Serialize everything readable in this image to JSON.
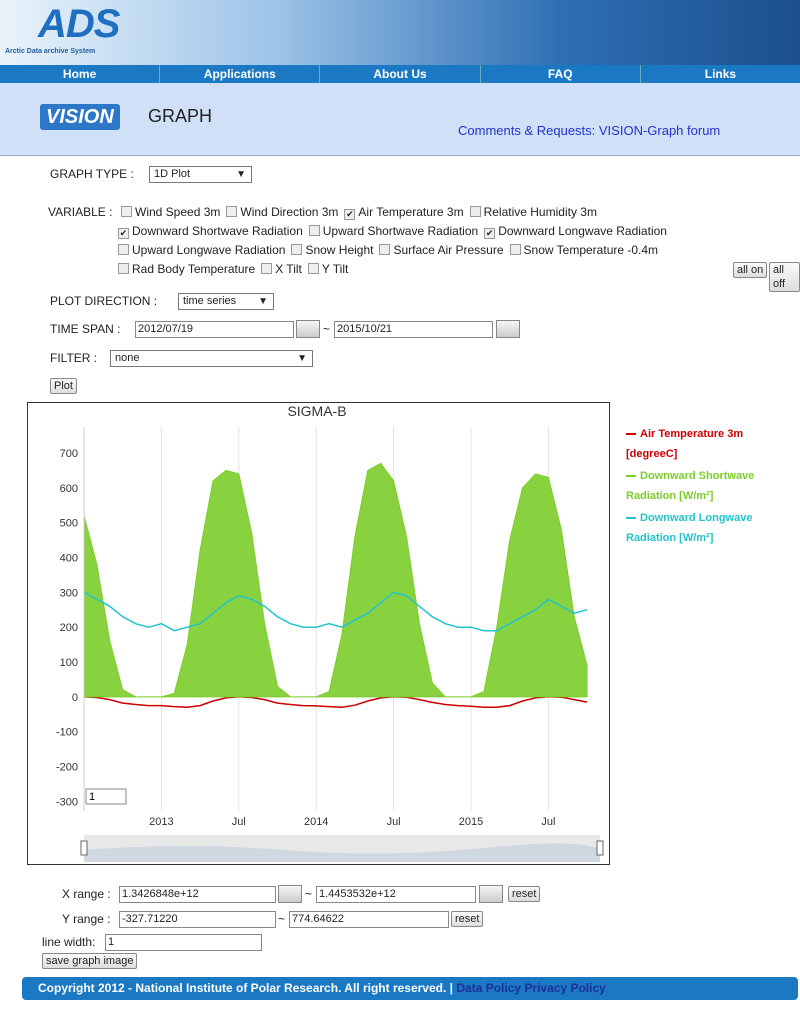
{
  "header": {
    "logo": "ADS",
    "logo_subtitle": "Arctic Data archive System",
    "nav": [
      "Home",
      "Applications",
      "About Us",
      "FAQ",
      "Links"
    ],
    "app_logo": "VISION",
    "app_title": "GRAPH",
    "forum_link": "Comments & Requests: VISION-Graph forum"
  },
  "form": {
    "graph_type_label": "GRAPH TYPE :",
    "graph_type": "1D Plot",
    "variable_label": "VARIABLE :",
    "variables": [
      [
        {
          "label": "Wind Speed 3m",
          "checked": false
        },
        {
          "label": "Wind Direction 3m",
          "checked": false
        },
        {
          "label": "Air Temperature 3m",
          "checked": true
        },
        {
          "label": "Relative Humidity 3m",
          "checked": false
        }
      ],
      [
        {
          "label": "Downward Shortwave Radiation",
          "checked": true
        },
        {
          "label": "Upward Shortwave Radiation",
          "checked": false
        },
        {
          "label": "Downward Longwave Radiation",
          "checked": true
        }
      ],
      [
        {
          "label": "Upward Longwave Radiation",
          "checked": false
        },
        {
          "label": "Snow Height",
          "checked": false
        },
        {
          "label": "Surface Air Pressure",
          "checked": false
        },
        {
          "label": "Snow Temperature -0.4m",
          "checked": false
        }
      ],
      [
        {
          "label": "Rad Body Temperature",
          "checked": false
        },
        {
          "label": "X Tilt",
          "checked": false
        },
        {
          "label": "Y Tilt",
          "checked": false
        }
      ]
    ],
    "all_on": "all on",
    "all_off": "all off",
    "plot_direction_label": "PLOT DIRECTION :",
    "plot_direction": "time series",
    "time_span_label": "TIME SPAN :",
    "time_from": "2012/07/19",
    "time_sep": "~",
    "time_to": "2015/10/21",
    "filter_label": "FILTER :",
    "filter": "none",
    "plot_button": "Plot"
  },
  "chart_data": {
    "type": "line",
    "title": "SIGMA-B",
    "roller": "1",
    "x": [
      "2012-07",
      "2012-08",
      "2012-09",
      "2012-10",
      "2012-11",
      "2012-12",
      "2013-01",
      "2013-02",
      "2013-03",
      "2013-04",
      "2013-05",
      "2013-06",
      "2013-07",
      "2013-08",
      "2013-09",
      "2013-10",
      "2013-11",
      "2013-12",
      "2014-01",
      "2014-02",
      "2014-03",
      "2014-04",
      "2014-05",
      "2014-06",
      "2014-07",
      "2014-08",
      "2014-09",
      "2014-10",
      "2014-11",
      "2014-12",
      "2015-01",
      "2015-02",
      "2015-03",
      "2015-04",
      "2015-05",
      "2015-06",
      "2015-07",
      "2015-08",
      "2015-09",
      "2015-10"
    ],
    "series": [
      {
        "name": "Air Temperature 3m [degreeC]",
        "color": "#cc0000",
        "values": [
          0,
          -2,
          -8,
          -18,
          -22,
          -25,
          -25,
          -28,
          -30,
          -25,
          -12,
          -3,
          0,
          -2,
          -8,
          -18,
          -22,
          -25,
          -26,
          -28,
          -30,
          -24,
          -12,
          -3,
          0,
          -1,
          -8,
          -16,
          -22,
          -25,
          -27,
          -30,
          -30,
          -25,
          -12,
          -3,
          0,
          -1,
          -8,
          -15
        ]
      },
      {
        "name": "Downward Shortwave Radiation [W/m²]",
        "color": "#7ccd2a",
        "fill": true,
        "values": [
          520,
          380,
          160,
          20,
          0,
          0,
          0,
          10,
          150,
          420,
          620,
          650,
          640,
          470,
          210,
          30,
          0,
          0,
          0,
          15,
          180,
          460,
          650,
          670,
          620,
          460,
          210,
          40,
          0,
          0,
          0,
          15,
          200,
          450,
          600,
          640,
          630,
          480,
          230,
          90
        ]
      },
      {
        "name": "Downward Longwave Radiation [W/m²]",
        "color": "#22c4cc",
        "values": [
          300,
          280,
          260,
          230,
          210,
          200,
          210,
          190,
          200,
          210,
          240,
          270,
          290,
          280,
          260,
          230,
          210,
          200,
          200,
          210,
          200,
          220,
          240,
          270,
          300,
          290,
          260,
          230,
          210,
          200,
          200,
          190,
          190,
          210,
          230,
          250,
          280,
          260,
          240,
          250
        ]
      }
    ],
    "xlim": [
      "2012-07",
      "2015-11"
    ],
    "xticks": [
      {
        "value": "2013-01",
        "label": "2013"
      },
      {
        "value": "2013-07",
        "label": "Jul"
      },
      {
        "value": "2014-01",
        "label": "2014"
      },
      {
        "value": "2014-07",
        "label": "Jul"
      },
      {
        "value": "2015-01",
        "label": "2015"
      },
      {
        "value": "2015-07",
        "label": "Jul"
      }
    ],
    "ylim": [
      -327.7,
      774.6
    ],
    "yticks": [
      -300,
      -200,
      -100,
      0,
      100,
      200,
      300,
      400,
      500,
      600,
      700
    ],
    "grid": "x",
    "legend": "right"
  },
  "range": {
    "x_label": "X range :",
    "x_from": "1.3426848e+12",
    "x_sep": "~",
    "x_to": "1.4453532e+12",
    "x_reset": "reset",
    "y_label": "Y range :",
    "y_from": "-327.71220",
    "y_sep": "~",
    "y_to": "774.64622",
    "y_reset": "reset",
    "line_width_label": "line width:",
    "line_width": "1",
    "save": "save graph image"
  },
  "footer": {
    "copyright": "Copyright 2012 - National Institute of Polar Research. All right reserved. |",
    "links": [
      "Data Policy",
      "Privacy Policy"
    ]
  }
}
